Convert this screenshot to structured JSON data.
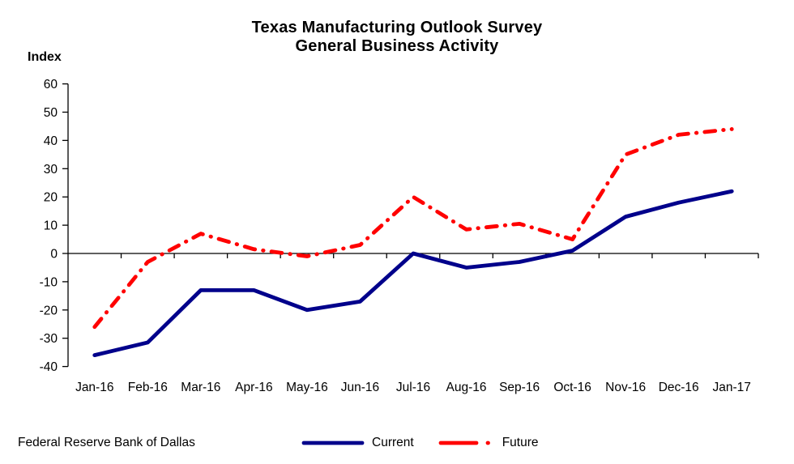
{
  "title": {
    "line1": "Texas Manufacturing Outlook Survey",
    "line2": "General Business Activity"
  },
  "y_axis_label": "Index",
  "footer_source": "Federal Reserve Bank of Dallas",
  "legend": [
    {
      "label": "Current",
      "color": "#00008B",
      "line_style": "solid"
    },
    {
      "label": "Future",
      "color": "#FF0000",
      "line_style": "dash-dot"
    }
  ],
  "chart_data": {
    "type": "line",
    "title": "Texas Manufacturing Outlook Survey - General Business Activity",
    "xlabel": "",
    "ylabel": "Index",
    "ylim": [
      -40,
      60
    ],
    "ytick_step": 10,
    "grid": false,
    "legend_position": "bottom-center",
    "categories": [
      "Jan-16",
      "Feb-16",
      "Mar-16",
      "Apr-16",
      "May-16",
      "Jun-16",
      "Jul-16",
      "Aug-16",
      "Sep-16",
      "Oct-16",
      "Nov-16",
      "Dec-16",
      "Jan-17"
    ],
    "series": [
      {
        "name": "Current",
        "color": "#00008B",
        "style": "solid",
        "values": [
          -36,
          -31.5,
          -13,
          -13,
          -20,
          -17,
          0,
          -5,
          -3,
          1,
          13,
          18,
          22
        ]
      },
      {
        "name": "Future",
        "color": "#FF0000",
        "style": "dash-dot",
        "values": [
          -26,
          -3,
          7,
          1.5,
          -1,
          3,
          20,
          8.5,
          10.5,
          5,
          35,
          42,
          44
        ]
      }
    ]
  }
}
